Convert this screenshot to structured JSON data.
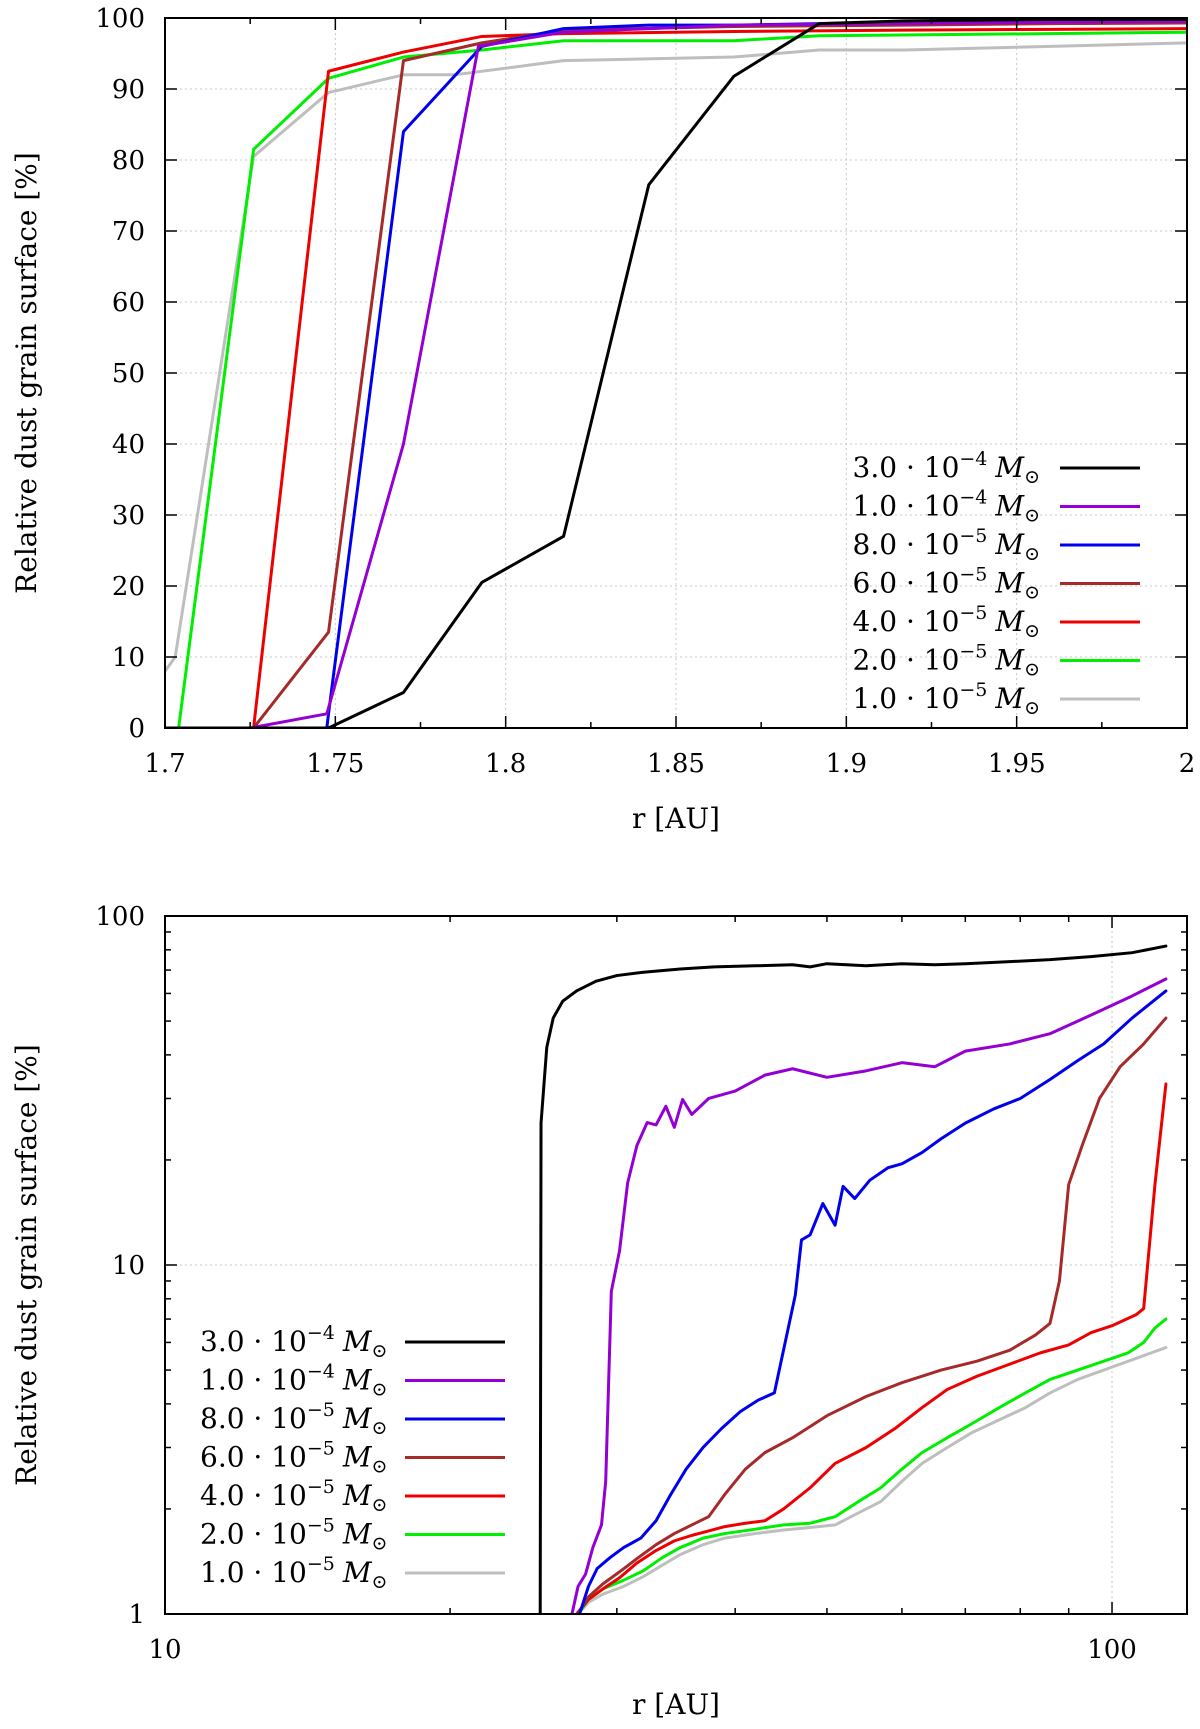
{
  "chart_data": [
    {
      "type": "line",
      "id": "top",
      "xlabel": "r [AU]",
      "ylabel": "Relative dust grain surface [%]",
      "xscale": "linear",
      "yscale": "linear",
      "xlim": [
        1.7,
        2.0
      ],
      "ylim": [
        0,
        100
      ],
      "xticks": [
        1.7,
        1.75,
        1.8,
        1.85,
        1.9,
        1.95,
        2.0
      ],
      "xtick_labels": [
        "1.7",
        "1.75",
        "1.8",
        "1.85",
        "1.9",
        "1.95",
        "2"
      ],
      "yticks": [
        0,
        10,
        20,
        30,
        40,
        50,
        60,
        70,
        80,
        90,
        100
      ],
      "ytick_labels": [
        "0",
        "10",
        "20",
        "30",
        "40",
        "50",
        "60",
        "70",
        "80",
        "90",
        "100"
      ],
      "grid": true,
      "legend_position": "bottom-right",
      "series": [
        {
          "key": "s1",
          "label_base": "3.0 · 10",
          "label_exp": "−4",
          "label_unit": "M",
          "label_sub": "⊙",
          "color": "#000000",
          "x": [
            1.7,
            1.7475,
            1.748,
            1.77,
            1.793,
            1.817,
            1.842,
            1.867,
            1.892,
            1.917,
            1.96,
            2.0
          ],
          "y": [
            0,
            0,
            0,
            5,
            20.5,
            27,
            76.5,
            91.8,
            99.2,
            99.6,
            99.8,
            99.8
          ]
        },
        {
          "key": "s2",
          "label_base": "1.0 · 10",
          "label_exp": "−4",
          "label_unit": "M",
          "label_sub": "⊙",
          "color": "#9400D3",
          "x": [
            1.7,
            1.725,
            1.7475,
            1.77,
            1.792,
            1.817,
            1.867,
            1.917,
            1.96,
            2.0
          ],
          "y": [
            0,
            0,
            2,
            40,
            96,
            98,
            99,
            99.2,
            99.4,
            99.5
          ]
        },
        {
          "key": "s3",
          "label_base": "8.0 · 10",
          "label_exp": "−5",
          "label_unit": "M",
          "label_sub": "⊙",
          "color": "#0000EE",
          "x": [
            1.7,
            1.7475,
            1.748,
            1.77,
            1.793,
            1.817,
            1.842,
            1.867,
            1.917,
            1.96,
            2.0
          ],
          "y": [
            0,
            0,
            2,
            84,
            96,
            98.5,
            99,
            99,
            99.4,
            99.5,
            99.6
          ]
        },
        {
          "key": "s4",
          "label_base": "6.0 · 10",
          "label_exp": "−5",
          "label_unit": "M",
          "label_sub": "⊙",
          "color": "#A52A2A",
          "x": [
            1.7,
            1.726,
            1.748,
            1.77,
            1.793,
            1.817,
            1.867,
            1.917,
            1.96,
            2.0
          ],
          "y": [
            0,
            0,
            13.5,
            94,
            96.5,
            98.3,
            98.8,
            99,
            99.2,
            99.3
          ]
        },
        {
          "key": "s5",
          "label_base": "4.0 · 10",
          "label_exp": "−5",
          "label_unit": "M",
          "label_sub": "⊙",
          "color": "#EE0000",
          "x": [
            1.7,
            1.726,
            1.748,
            1.77,
            1.793,
            1.817,
            1.867,
            1.917,
            1.96,
            2.0
          ],
          "y": [
            0,
            0,
            92.5,
            95.2,
            97.4,
            97.8,
            98.1,
            98.3,
            98.4,
            98.5
          ]
        },
        {
          "key": "s6",
          "label_base": "2.0 · 10",
          "label_exp": "−5",
          "label_unit": "M",
          "label_sub": "⊙",
          "color": "#00EE00",
          "x": [
            1.7,
            1.702,
            1.704,
            1.726,
            1.748,
            1.77,
            1.793,
            1.817,
            1.867,
            1.892,
            1.96,
            2.0
          ],
          "y": [
            0,
            0,
            0,
            81.5,
            91.5,
            94.5,
            95.5,
            96.8,
            96.8,
            97.5,
            97.8,
            98
          ]
        },
        {
          "key": "s7",
          "label_base": "1.0 · 10",
          "label_exp": "−5",
          "label_unit": "M",
          "label_sub": "⊙",
          "color": "#BEBEBE",
          "x": [
            1.7,
            1.703,
            1.726,
            1.748,
            1.77,
            1.785,
            1.817,
            1.867,
            1.892,
            1.917,
            1.96,
            2.0
          ],
          "y": [
            8,
            10,
            80.5,
            89.5,
            92,
            92,
            94,
            94.5,
            95.5,
            95.5,
            96,
            96.5
          ]
        }
      ]
    },
    {
      "type": "line",
      "id": "bottom",
      "xlabel": "r [AU]",
      "ylabel": "Relative dust grain surface [%]",
      "xscale": "log",
      "yscale": "log",
      "xlim": [
        10,
        120
      ],
      "ylim": [
        1,
        100
      ],
      "xticks": [
        10,
        100
      ],
      "xtick_labels": [
        "10",
        "100"
      ],
      "yticks": [
        1,
        10,
        100
      ],
      "ytick_labels": [
        "1",
        "10",
        "100"
      ],
      "grid": true,
      "legend_position": "bottom-left",
      "series": [
        {
          "key": "s1",
          "label_base": "3.0 · 10",
          "label_exp": "−4",
          "label_unit": "M",
          "label_sub": "⊙",
          "color": "#000000",
          "x": [
            24.9,
            24.95,
            25.3,
            25.7,
            26.3,
            27.2,
            28.5,
            30,
            32,
            35,
            38,
            42,
            46,
            48,
            50,
            55,
            60,
            65,
            70,
            78,
            86,
            95,
            105,
            114
          ],
          "y": [
            1,
            25.5,
            42,
            51,
            57,
            61,
            65,
            67.5,
            69,
            70.5,
            71.5,
            72,
            72.5,
            71.5,
            73,
            72,
            73,
            72.5,
            73,
            74,
            75,
            76.5,
            78.5,
            82
          ]
        },
        {
          "key": "s2",
          "label_base": "1.0 · 10",
          "label_exp": "−4",
          "label_unit": "M",
          "label_sub": "⊙",
          "color": "#9400D3",
          "x": [
            26.9,
            27.3,
            27.8,
            28.3,
            28.9,
            29.2,
            29.6,
            30.2,
            30.8,
            31.5,
            32.3,
            33,
            33.8,
            34.5,
            35.2,
            36,
            37.5,
            40,
            43,
            46,
            50,
            55,
            60,
            65,
            70,
            78,
            86,
            95,
            105,
            114
          ],
          "y": [
            1,
            1.2,
            1.3,
            1.55,
            1.8,
            2.4,
            8.4,
            11,
            17.2,
            22,
            25.6,
            25.2,
            28.5,
            24.8,
            29.8,
            27,
            30,
            31.5,
            35,
            36.5,
            34.5,
            36,
            38,
            37,
            41,
            43,
            46,
            52,
            59,
            66
          ]
        },
        {
          "key": "s3",
          "label_base": "8.0 · 10",
          "label_exp": "−5",
          "label_unit": "M",
          "label_sub": "⊙",
          "color": "#0000EE",
          "x": [
            27.4,
            28,
            28.6,
            29.5,
            30.5,
            31.8,
            33,
            34.2,
            35.5,
            37,
            38.7,
            40.5,
            42.3,
            44,
            46.3,
            47,
            48,
            49.5,
            51,
            52,
            53.5,
            55.5,
            58,
            60,
            63,
            66,
            70,
            75,
            80,
            86,
            92,
            98,
            105,
            114
          ],
          "y": [
            1,
            1.2,
            1.35,
            1.45,
            1.55,
            1.65,
            1.85,
            2.2,
            2.6,
            3.0,
            3.4,
            3.8,
            4.1,
            4.3,
            8.2,
            11.8,
            12.2,
            15,
            13,
            16.8,
            15.5,
            17.5,
            19,
            19.5,
            21,
            23,
            25.5,
            28,
            30,
            34,
            38.5,
            43,
            51,
            61
          ]
        },
        {
          "key": "s4",
          "label_base": "6.0 · 10",
          "label_exp": "−5",
          "label_unit": "M",
          "label_sub": "⊙",
          "color": "#A52A2A",
          "x": [
            27.3,
            28,
            29,
            30.3,
            31.6,
            33,
            34.5,
            36,
            37.5,
            39,
            41,
            43,
            46,
            50,
            55,
            60,
            66,
            72,
            78,
            83,
            86,
            88,
            90,
            93,
            97,
            102,
            108,
            114
          ],
          "y": [
            1,
            1.12,
            1.22,
            1.33,
            1.45,
            1.58,
            1.7,
            1.8,
            1.9,
            2.2,
            2.6,
            2.9,
            3.2,
            3.7,
            4.2,
            4.6,
            5.0,
            5.3,
            5.7,
            6.3,
            6.8,
            9,
            17,
            22,
            30,
            37,
            43,
            51
          ]
        },
        {
          "key": "s5",
          "label_base": "4.0 · 10",
          "label_exp": "−5",
          "label_unit": "M",
          "label_sub": "⊙",
          "color": "#EE0000",
          "x": [
            27.2,
            28,
            29,
            30.2,
            31.5,
            33,
            34.5,
            36,
            37.5,
            39,
            41,
            43,
            45,
            48,
            51,
            55,
            59,
            63,
            67,
            72,
            78,
            84,
            90,
            95,
            100,
            106,
            108,
            111,
            114
          ],
          "y": [
            1,
            1.1,
            1.18,
            1.27,
            1.4,
            1.52,
            1.62,
            1.68,
            1.73,
            1.78,
            1.82,
            1.85,
            2.0,
            2.3,
            2.7,
            3.0,
            3.4,
            3.9,
            4.4,
            4.8,
            5.2,
            5.6,
            5.9,
            6.4,
            6.7,
            7.2,
            7.5,
            17,
            33
          ]
        },
        {
          "key": "s6",
          "label_base": "2.0 · 10",
          "label_exp": "−5",
          "label_unit": "M",
          "label_sub": "⊙",
          "color": "#00EE00",
          "x": [
            27.3,
            28,
            29,
            30.5,
            32,
            33.5,
            35,
            37,
            39,
            42,
            45,
            48,
            51,
            54,
            57,
            60,
            63,
            67,
            71,
            76,
            81,
            86,
            92,
            98,
            104,
            108,
            111,
            114
          ],
          "y": [
            1,
            1.1,
            1.18,
            1.25,
            1.33,
            1.45,
            1.55,
            1.65,
            1.7,
            1.75,
            1.8,
            1.82,
            1.9,
            2.1,
            2.3,
            2.6,
            2.9,
            3.2,
            3.5,
            3.9,
            4.3,
            4.7,
            5.0,
            5.3,
            5.6,
            6.0,
            6.6,
            7.0
          ]
        },
        {
          "key": "s7",
          "label_base": "1.0 · 10",
          "label_exp": "−5",
          "label_unit": "M",
          "label_sub": "⊙",
          "color": "#BEBEBE",
          "x": [
            27.3,
            28,
            29,
            30.5,
            32,
            33.5,
            35,
            37,
            39,
            42,
            45,
            48,
            51,
            54,
            57,
            60,
            63,
            67,
            71,
            76,
            81,
            86,
            92,
            98,
            104,
            110,
            114
          ],
          "y": [
            1,
            1.08,
            1.14,
            1.2,
            1.28,
            1.38,
            1.48,
            1.58,
            1.65,
            1.7,
            1.74,
            1.77,
            1.8,
            1.95,
            2.1,
            2.4,
            2.7,
            3.0,
            3.3,
            3.6,
            3.9,
            4.3,
            4.7,
            5.0,
            5.3,
            5.6,
            5.8
          ]
        }
      ]
    }
  ]
}
